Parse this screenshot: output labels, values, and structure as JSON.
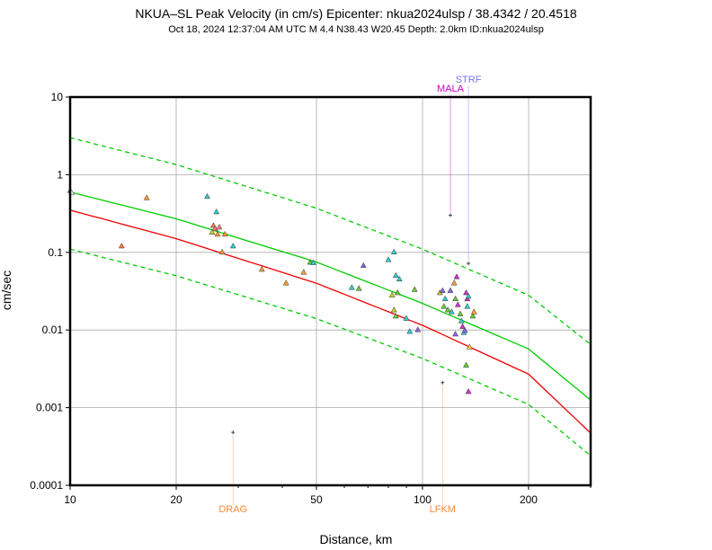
{
  "chart_data": {
    "type": "scatter",
    "title": "NKUA–SL Peak Velocity (in cm/s) Epicenter: nkua2024ulsp / 38.4342 / 20.4518",
    "subtitle": "Oct 18, 2024 12:37:04 AM UTC   M 4.4   N38.43 W20.45   Depth: 2.0km   ID:nkua2024ulsp",
    "xlabel": "Distance, km",
    "ylabel": "cm/sec",
    "xscale": "log",
    "yscale": "log",
    "xlim": [
      10,
      300
    ],
    "ylim": [
      0.0001,
      10
    ],
    "grid": true,
    "x_ticks": [
      {
        "value": 10,
        "label": "10"
      },
      {
        "value": 20,
        "label": "20"
      },
      {
        "value": 50,
        "label": "50"
      },
      {
        "value": 100,
        "label": "100"
      },
      {
        "value": 200,
        "label": "200"
      }
    ],
    "y_ticks": [
      {
        "value": 10,
        "label": "10"
      },
      {
        "value": 1,
        "label": "1"
      },
      {
        "value": 0.1,
        "label": "0.1"
      },
      {
        "value": 0.01,
        "label": "0.01"
      },
      {
        "value": 0.001,
        "label": "0.001"
      },
      {
        "value": 0.0001,
        "label": "0.0001"
      }
    ],
    "curves": [
      {
        "name": "median",
        "color": "#00cc00",
        "dash": false,
        "x": [
          10,
          20,
          50,
          100,
          200,
          300
        ],
        "y": [
          0.6,
          0.27,
          0.075,
          0.022,
          0.0057,
          0.00125
        ]
      },
      {
        "name": "upper",
        "color": "#00cc00",
        "dash": true,
        "x": [
          10,
          20,
          50,
          100,
          200,
          300
        ],
        "y": [
          3.0,
          1.35,
          0.37,
          0.11,
          0.028,
          0.0065
        ]
      },
      {
        "name": "lower",
        "color": "#00cc00",
        "dash": true,
        "x": [
          10,
          20,
          50,
          100,
          200,
          300
        ],
        "y": [
          0.11,
          0.05,
          0.014,
          0.0043,
          0.0011,
          0.00024
        ]
      },
      {
        "name": "fit",
        "color": "#ee0000",
        "dash": false,
        "x": [
          10,
          20,
          50,
          100,
          200,
          300
        ],
        "y": [
          0.35,
          0.15,
          0.04,
          0.0115,
          0.0027,
          0.00047
        ]
      }
    ],
    "points": [
      {
        "x": 10.0,
        "y": 0.62,
        "c": "#33cccc"
      },
      {
        "x": 10.1,
        "y": 0.58,
        "c": "#ffffff"
      },
      {
        "x": 14.0,
        "y": 0.12,
        "c": "#ff7744"
      },
      {
        "x": 16.5,
        "y": 0.5,
        "c": "#ff9933"
      },
      {
        "x": 24.5,
        "y": 0.52,
        "c": "#33cccc"
      },
      {
        "x": 25.5,
        "y": 0.22,
        "c": "#ff7744"
      },
      {
        "x": 25.8,
        "y": 0.2,
        "c": "#ff7777"
      },
      {
        "x": 26.0,
        "y": 0.33,
        "c": "#33cccc"
      },
      {
        "x": 26.2,
        "y": 0.17,
        "c": "#ff9933"
      },
      {
        "x": 25.3,
        "y": 0.18,
        "c": "#cccc33"
      },
      {
        "x": 26.5,
        "y": 0.21,
        "c": "#ff7777"
      },
      {
        "x": 27.0,
        "y": 0.1,
        "c": "#ff9933"
      },
      {
        "x": 27.5,
        "y": 0.17,
        "c": "#ff9933"
      },
      {
        "x": 29.0,
        "y": 0.12,
        "c": "#33cccc"
      },
      {
        "x": 35.0,
        "y": 0.06,
        "c": "#ff9933"
      },
      {
        "x": 41.0,
        "y": 0.04,
        "c": "#ff9933"
      },
      {
        "x": 46.0,
        "y": 0.055,
        "c": "#ff9933"
      },
      {
        "x": 48.0,
        "y": 0.074,
        "c": "#66cc33"
      },
      {
        "x": 49.0,
        "y": 0.073,
        "c": "#33cccc"
      },
      {
        "x": 63.0,
        "y": 0.035,
        "c": "#33cccc"
      },
      {
        "x": 66.0,
        "y": 0.034,
        "c": "#66cc33"
      },
      {
        "x": 68.0,
        "y": 0.067,
        "c": "#8866dd"
      },
      {
        "x": 80.0,
        "y": 0.08,
        "c": "#33cccc"
      },
      {
        "x": 83.0,
        "y": 0.1,
        "c": "#33cccc"
      },
      {
        "x": 84.0,
        "y": 0.05,
        "c": "#33cccc"
      },
      {
        "x": 86.0,
        "y": 0.045,
        "c": "#33cccc"
      },
      {
        "x": 82.0,
        "y": 0.028,
        "c": "#cccc33"
      },
      {
        "x": 85.0,
        "y": 0.03,
        "c": "#66cc33"
      },
      {
        "x": 83.0,
        "y": 0.018,
        "c": "#cccc33"
      },
      {
        "x": 84.0,
        "y": 0.015,
        "c": "#66cc33"
      },
      {
        "x": 90.0,
        "y": 0.014,
        "c": "#33cccc"
      },
      {
        "x": 95.0,
        "y": 0.033,
        "c": "#66cc33"
      },
      {
        "x": 92.0,
        "y": 0.0095,
        "c": "#33cccc"
      },
      {
        "x": 97.0,
        "y": 0.01,
        "c": "#8866dd"
      },
      {
        "x": 112.0,
        "y": 0.03,
        "c": "#cccc33"
      },
      {
        "x": 114.0,
        "y": 0.032,
        "c": "#8866dd"
      },
      {
        "x": 116.0,
        "y": 0.025,
        "c": "#33cccc"
      },
      {
        "x": 115.0,
        "y": 0.02,
        "c": "#66cc33"
      },
      {
        "x": 118.0,
        "y": 0.018,
        "c": "#66cc33"
      },
      {
        "x": 120.0,
        "y": 0.032,
        "c": "#8866dd"
      },
      {
        "x": 121.0,
        "y": 0.017,
        "c": "#33cccc"
      },
      {
        "x": 123.0,
        "y": 0.04,
        "c": "#ff9933"
      },
      {
        "x": 125.0,
        "y": 0.048,
        "c": "#cc33cc"
      },
      {
        "x": 124.0,
        "y": 0.025,
        "c": "#66cc33"
      },
      {
        "x": 126.0,
        "y": 0.021,
        "c": "#cc33cc"
      },
      {
        "x": 128.0,
        "y": 0.016,
        "c": "#66cc33"
      },
      {
        "x": 129.0,
        "y": 0.013,
        "c": "#33cccc"
      },
      {
        "x": 130.0,
        "y": 0.011,
        "c": "#cc33cc"
      },
      {
        "x": 124.0,
        "y": 0.0088,
        "c": "#8866dd"
      },
      {
        "x": 131.0,
        "y": 0.0092,
        "c": "#33cccc"
      },
      {
        "x": 133.0,
        "y": 0.03,
        "c": "#cc33cc"
      },
      {
        "x": 134.0,
        "y": 0.025,
        "c": "#cc33cc"
      },
      {
        "x": 135.0,
        "y": 0.027,
        "c": "#33cccc"
      },
      {
        "x": 132.0,
        "y": 0.0098,
        "c": "#8866dd"
      },
      {
        "x": 134.0,
        "y": 0.02,
        "c": "#33cccc"
      },
      {
        "x": 136.0,
        "y": 0.006,
        "c": "#ffcc33"
      },
      {
        "x": 139.0,
        "y": 0.015,
        "c": "#66cc33"
      },
      {
        "x": 140.0,
        "y": 0.017,
        "c": "#ff9933"
      },
      {
        "x": 133.0,
        "y": 0.0035,
        "c": "#66cc33"
      },
      {
        "x": 135.0,
        "y": 0.0016,
        "c": "#cc33cc"
      }
    ],
    "stations": [
      {
        "label": "DRAG",
        "x": 29.0,
        "y": 0.00048,
        "color": "#ff8833"
      },
      {
        "label": "LFKM",
        "x": 114.0,
        "y": 0.0021,
        "color": "#ff8833"
      },
      {
        "label": "MALA",
        "x": 120.0,
        "y": 0.3,
        "color": "#cc00cc"
      },
      {
        "label": "STRF",
        "x": 135.0,
        "y": 0.072,
        "color": "#7777ff"
      }
    ]
  }
}
